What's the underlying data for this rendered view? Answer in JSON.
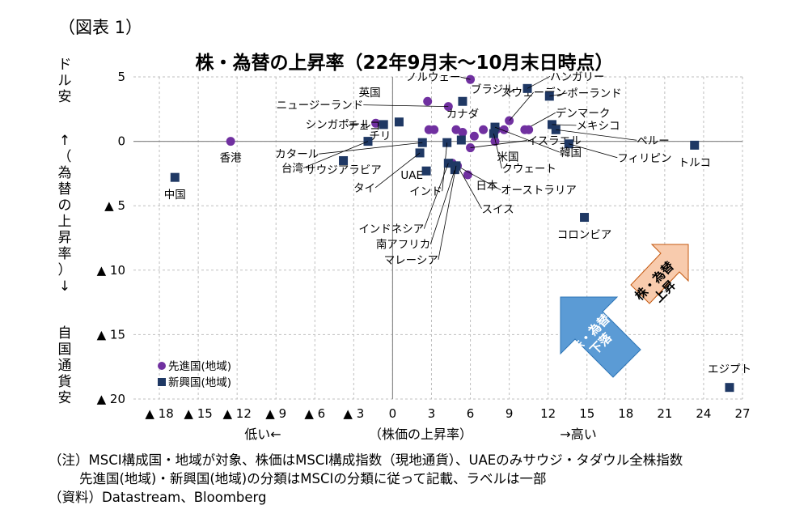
{
  "figure_label": "（図表 1）",
  "chart_data": {
    "type": "scatter",
    "title": "株・為替の上昇率（22年9月末～10月末日時点）",
    "xlabel": "（株価の上昇率）",
    "xlabel_left": "低い←",
    "xlabel_right": "→高い",
    "ylabel_top": "ドル安",
    "ylabel_middle": "↑（為替の上昇率）↓",
    "ylabel_bottom": "自国通貨安",
    "xlim": [
      -20,
      27
    ],
    "ylim": [
      -20,
      5
    ],
    "x_ticks": [
      {
        "value": -18,
        "label": "▲ 18"
      },
      {
        "value": -15,
        "label": "▲ 15"
      },
      {
        "value": -12,
        "label": "▲ 12"
      },
      {
        "value": -9,
        "label": "▲ 9"
      },
      {
        "value": -6,
        "label": "▲ 6"
      },
      {
        "value": -3,
        "label": "▲ 3"
      },
      {
        "value": 0,
        "label": "0"
      },
      {
        "value": 3,
        "label": "3"
      },
      {
        "value": 6,
        "label": "6"
      },
      {
        "value": 9,
        "label": "9"
      },
      {
        "value": 12,
        "label": "12"
      },
      {
        "value": 15,
        "label": "15"
      },
      {
        "value": 18,
        "label": "18"
      },
      {
        "value": 21,
        "label": "21"
      },
      {
        "value": 24,
        "label": "24"
      },
      {
        "value": 27,
        "label": "27"
      }
    ],
    "y_ticks": [
      {
        "value": 5,
        "label": "5"
      },
      {
        "value": 0,
        "label": "0"
      },
      {
        "value": -5,
        "label": "▲ 5"
      },
      {
        "value": -10,
        "label": "▲ 10"
      },
      {
        "value": -15,
        "label": "▲ 15"
      },
      {
        "value": -20,
        "label": "▲ 20"
      }
    ],
    "grid": true,
    "legend": {
      "position": "bottom-left",
      "entries": [
        {
          "series": "developed",
          "label": "先進国(地域)"
        },
        {
          "series": "emerging",
          "label": "新興国(地域)"
        }
      ]
    },
    "series": [
      {
        "name": "先進国(地域)",
        "marker": "circle",
        "color": "#7030a0",
        "points": [
          {
            "x": 6.0,
            "y": 4.8,
            "label": "ノルウェー"
          },
          {
            "x": 2.7,
            "y": 3.1,
            "label": "英国"
          },
          {
            "x": 4.3,
            "y": 2.7,
            "label": "ニュージーランド"
          },
          {
            "x": -1.3,
            "y": 1.4,
            "label": "シンガポール"
          },
          {
            "x": -12.5,
            "y": 0.0,
            "label": "香港"
          },
          {
            "x": 9.0,
            "y": 1.6,
            "label": "スウェーデン"
          },
          {
            "x": 2.8,
            "y": 0.9,
            "label": ""
          },
          {
            "x": 3.2,
            "y": 0.9,
            "label": ""
          },
          {
            "x": 4.9,
            "y": 0.9,
            "label": ""
          },
          {
            "x": 5.4,
            "y": 0.7,
            "label": "カナダ"
          },
          {
            "x": 6.3,
            "y": 0.4,
            "label": ""
          },
          {
            "x": 7.0,
            "y": 0.9,
            "label": ""
          },
          {
            "x": 8.0,
            "y": 0.9,
            "label": ""
          },
          {
            "x": 8.6,
            "y": 0.9,
            "label": ""
          },
          {
            "x": 10.2,
            "y": 0.9,
            "label": "デンマーク"
          },
          {
            "x": 10.5,
            "y": 0.9,
            "label": ""
          },
          {
            "x": 7.9,
            "y": 0.0,
            "label": "米国"
          },
          {
            "x": 6.0,
            "y": -0.5,
            "label": "イスラエル"
          },
          {
            "x": 5.8,
            "y": -2.6,
            "label": "日本"
          },
          {
            "x": 4.6,
            "y": -1.7,
            "label": "オーストラリア"
          },
          {
            "x": 5.0,
            "y": -1.9,
            "label": "スイス"
          }
        ]
      },
      {
        "name": "新興国(地域)",
        "marker": "square",
        "color": "#1f3864",
        "points": [
          {
            "x": 10.4,
            "y": 4.1,
            "label": "ハンガリー"
          },
          {
            "x": 12.1,
            "y": 3.5,
            "label": "ポーランド"
          },
          {
            "x": 5.4,
            "y": 3.1,
            "label": "ブラジル"
          },
          {
            "x": 12.3,
            "y": 1.3,
            "label": "メキシコ"
          },
          {
            "x": 12.6,
            "y": 0.9,
            "label": "ペルー"
          },
          {
            "x": 13.6,
            "y": -0.2,
            "label": "フィリピン"
          },
          {
            "x": 7.9,
            "y": 1.1,
            "label": "韓国"
          },
          {
            "x": 7.8,
            "y": 0.6,
            "label": "クウェート"
          },
          {
            "x": -0.7,
            "y": 1.3,
            "label": "チェコ"
          },
          {
            "x": 0.5,
            "y": 1.5,
            "label": "チリ"
          },
          {
            "x": 2.3,
            "y": -0.1,
            "label": "カタール"
          },
          {
            "x": -1.9,
            "y": 0.0,
            "label": "台湾"
          },
          {
            "x": -3.8,
            "y": -1.5,
            "label": "サウジアラビア"
          },
          {
            "x": 2.1,
            "y": -0.9,
            "label": "タイ"
          },
          {
            "x": 2.6,
            "y": -2.3,
            "label": "UAE"
          },
          {
            "x": 4.2,
            "y": -0.1,
            "label": "インド"
          },
          {
            "x": 5.3,
            "y": 0.1,
            "label": ""
          },
          {
            "x": 4.3,
            "y": -1.7,
            "label": "インドネシア"
          },
          {
            "x": 4.8,
            "y": -2.2,
            "label": "南アフリカ"
          },
          {
            "x": 4.9,
            "y": -1.9,
            "label": "マレーシア"
          },
          {
            "x": -16.8,
            "y": -2.8,
            "label": "中国"
          },
          {
            "x": 14.8,
            "y": -5.9,
            "label": "コロンビア"
          },
          {
            "x": 23.3,
            "y": -0.3,
            "label": "トルコ"
          },
          {
            "x": 26.0,
            "y": -19.1,
            "label": "エジプト"
          }
        ]
      }
    ],
    "annotations": [
      {
        "text": "株・為替上昇",
        "shape": "arrow-up-right",
        "color": "#f8cbad"
      },
      {
        "text": "株・為替下落",
        "shape": "arrow-down-left",
        "color": "#5b9bd5"
      }
    ]
  },
  "notes": {
    "line1": "（注）MSCI構成国・地域が対象、株価はMSCI構成指数（現地通貨）、UAEのみサウジ・タダウル全株指数",
    "line2": "先進国(地域)・新興国(地域)の分類はMSCIの分類に従って記載、ラベルは一部",
    "line3": "（資料）Datastream、Bloomberg"
  }
}
